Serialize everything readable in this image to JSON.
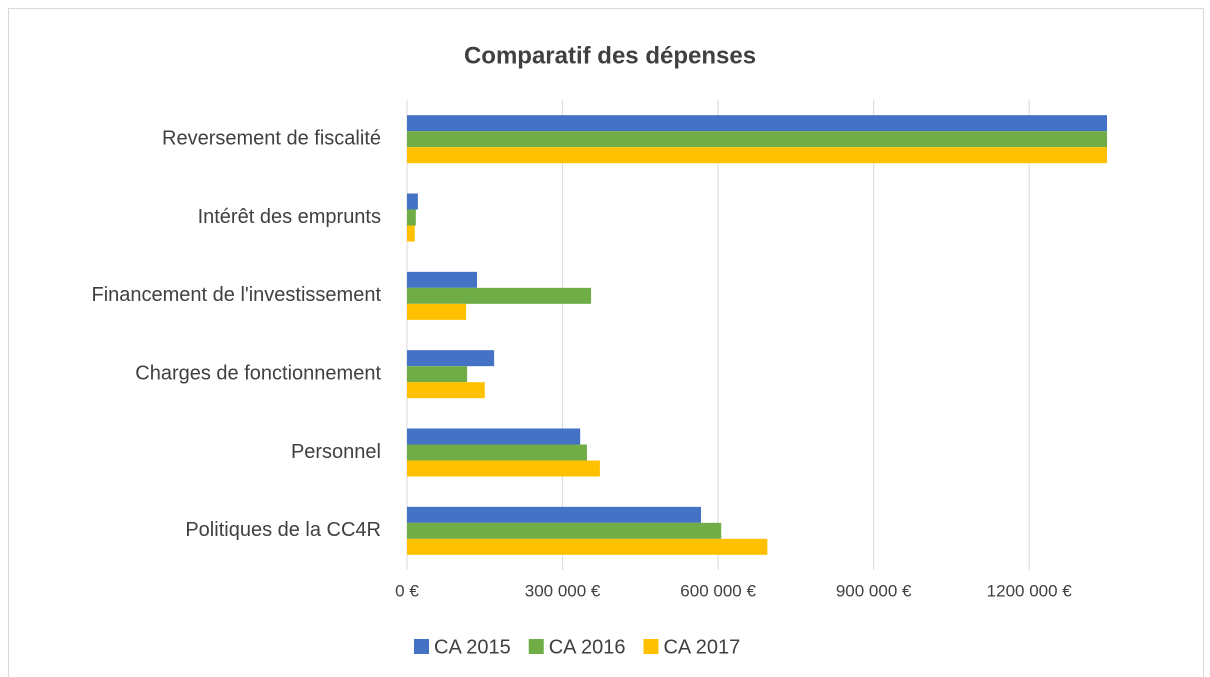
{
  "chart_data": {
    "type": "bar",
    "orientation": "horizontal",
    "title": "Comparatif des dépenses",
    "categories": [
      "Reversement de fiscalité",
      "Intérêt des emprunts",
      "Financement de l'investissement",
      "Charges de fonctionnement",
      "Personnel",
      "Politiques de la CC4R"
    ],
    "series": [
      {
        "name": "CA 2015",
        "color": "#4472c4",
        "values": [
          1350000,
          21000,
          135000,
          168000,
          334000,
          567000
        ]
      },
      {
        "name": "CA 2016",
        "color": "#70ad47",
        "values": [
          1350000,
          17000,
          355000,
          116000,
          347000,
          606000
        ]
      },
      {
        "name": "CA 2017",
        "color": "#ffc000",
        "values": [
          1350000,
          15000,
          114000,
          150000,
          372000,
          695000
        ]
      }
    ],
    "xlim": [
      0,
      1350000
    ],
    "xticks": [
      {
        "value": 0,
        "label": "0 €"
      },
      {
        "value": 300000,
        "label": "300 000 €"
      },
      {
        "value": 600000,
        "label": "600 000 €"
      },
      {
        "value": 900000,
        "label": "900 000 €"
      },
      {
        "value": 1200000,
        "label": "1200 000 €"
      }
    ],
    "grid": true,
    "legend": "bottom"
  }
}
